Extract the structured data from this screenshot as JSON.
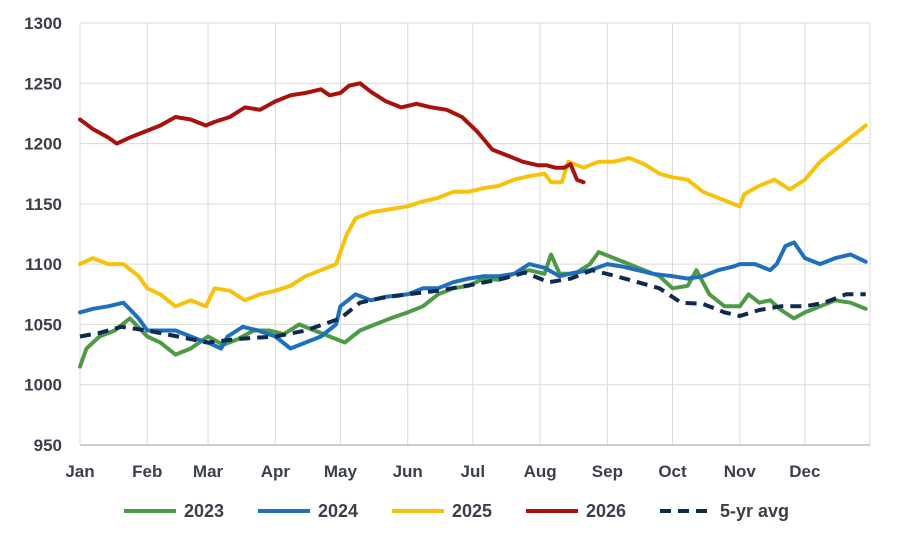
{
  "chart_data": {
    "type": "line",
    "title": "",
    "xlabel": "",
    "ylabel": "",
    "x_tick_labels": [
      "Jan",
      "Feb",
      "Mar",
      "Apr",
      "May",
      "Jun",
      "Jul",
      "Aug",
      "Sep",
      "Oct",
      "Nov",
      "Dec"
    ],
    "y_tick_labels": [
      "950",
      "1000",
      "1050",
      "1100",
      "1150",
      "1200",
      "1250",
      "1300"
    ],
    "ylim": [
      950,
      1300
    ],
    "grid": "vertical and horizontal",
    "legend_position": "bottom",
    "series": [
      {
        "name": "2023",
        "color": "#4f9a46",
        "dash": "solid",
        "points": [
          [
            "01-01",
            1015
          ],
          [
            "01-04",
            1030
          ],
          [
            "01-10",
            1040
          ],
          [
            "01-17",
            1045
          ],
          [
            "01-24",
            1055
          ],
          [
            "02-01",
            1040
          ],
          [
            "02-07",
            1035
          ],
          [
            "02-14",
            1025
          ],
          [
            "02-21",
            1030
          ],
          [
            "03-01",
            1040
          ],
          [
            "03-08",
            1033
          ],
          [
            "03-15",
            1038
          ],
          [
            "03-22",
            1045
          ],
          [
            "03-29",
            1045
          ],
          [
            "04-05",
            1042
          ],
          [
            "04-12",
            1050
          ],
          [
            "04-19",
            1045
          ],
          [
            "04-26",
            1040
          ],
          [
            "05-03",
            1035
          ],
          [
            "05-10",
            1045
          ],
          [
            "05-17",
            1050
          ],
          [
            "05-24",
            1055
          ],
          [
            "06-01",
            1060
          ],
          [
            "06-08",
            1065
          ],
          [
            "06-15",
            1075
          ],
          [
            "06-22",
            1080
          ],
          [
            "06-29",
            1082
          ],
          [
            "07-06",
            1088
          ],
          [
            "07-13",
            1087
          ],
          [
            "07-20",
            1092
          ],
          [
            "07-27",
            1095
          ],
          [
            "08-03",
            1092
          ],
          [
            "08-06",
            1108
          ],
          [
            "08-10",
            1092
          ],
          [
            "08-17",
            1092
          ],
          [
            "08-24",
            1100
          ],
          [
            "08-28",
            1110
          ],
          [
            "09-04",
            1105
          ],
          [
            "09-11",
            1100
          ],
          [
            "09-18",
            1095
          ],
          [
            "09-25",
            1090
          ],
          [
            "10-01",
            1080
          ],
          [
            "10-08",
            1082
          ],
          [
            "10-12",
            1095
          ],
          [
            "10-18",
            1075
          ],
          [
            "10-25",
            1065
          ],
          [
            "11-01",
            1065
          ],
          [
            "11-05",
            1075
          ],
          [
            "11-10",
            1068
          ],
          [
            "11-15",
            1070
          ],
          [
            "11-20",
            1062
          ],
          [
            "11-26",
            1055
          ],
          [
            "12-01",
            1060
          ],
          [
            "12-08",
            1065
          ],
          [
            "12-15",
            1070
          ],
          [
            "12-22",
            1068
          ],
          [
            "12-29",
            1063
          ]
        ]
      },
      {
        "name": "2024",
        "color": "#1f6fbf",
        "dash": "solid",
        "points": [
          [
            "01-01",
            1060
          ],
          [
            "01-07",
            1063
          ],
          [
            "01-14",
            1065
          ],
          [
            "01-21",
            1068
          ],
          [
            "01-28",
            1055
          ],
          [
            "02-01",
            1045
          ],
          [
            "02-07",
            1045
          ],
          [
            "02-14",
            1045
          ],
          [
            "02-21",
            1040
          ],
          [
            "02-28",
            1035
          ],
          [
            "03-01",
            1035
          ],
          [
            "03-07",
            1030
          ],
          [
            "03-10",
            1040
          ],
          [
            "03-17",
            1048
          ],
          [
            "03-24",
            1045
          ],
          [
            "04-01",
            1040
          ],
          [
            "04-08",
            1030
          ],
          [
            "04-15",
            1035
          ],
          [
            "04-22",
            1040
          ],
          [
            "04-29",
            1050
          ],
          [
            "05-01",
            1065
          ],
          [
            "05-08",
            1075
          ],
          [
            "05-15",
            1070
          ],
          [
            "05-22",
            1073
          ],
          [
            "06-01",
            1075
          ],
          [
            "06-08",
            1080
          ],
          [
            "06-15",
            1080
          ],
          [
            "06-22",
            1085
          ],
          [
            "06-29",
            1088
          ],
          [
            "07-06",
            1090
          ],
          [
            "07-13",
            1090
          ],
          [
            "07-20",
            1092
          ],
          [
            "07-27",
            1100
          ],
          [
            "08-03",
            1097
          ],
          [
            "08-10",
            1090
          ],
          [
            "08-17",
            1093
          ],
          [
            "08-24",
            1095
          ],
          [
            "09-01",
            1100
          ],
          [
            "09-08",
            1098
          ],
          [
            "09-15",
            1095
          ],
          [
            "09-22",
            1092
          ],
          [
            "10-01",
            1090
          ],
          [
            "10-08",
            1088
          ],
          [
            "10-15",
            1090
          ],
          [
            "10-22",
            1095
          ],
          [
            "10-29",
            1098
          ],
          [
            "11-01",
            1100
          ],
          [
            "11-08",
            1100
          ],
          [
            "11-15",
            1095
          ],
          [
            "11-18",
            1100
          ],
          [
            "11-22",
            1115
          ],
          [
            "11-26",
            1118
          ],
          [
            "12-01",
            1105
          ],
          [
            "12-08",
            1100
          ],
          [
            "12-15",
            1105
          ],
          [
            "12-22",
            1108
          ],
          [
            "12-29",
            1102
          ]
        ]
      },
      {
        "name": "2025",
        "color": "#f6c20c",
        "dash": "solid",
        "points": [
          [
            "01-01",
            1100
          ],
          [
            "01-07",
            1105
          ],
          [
            "01-14",
            1100
          ],
          [
            "01-21",
            1100
          ],
          [
            "01-28",
            1090
          ],
          [
            "02-01",
            1080
          ],
          [
            "02-07",
            1075
          ],
          [
            "02-14",
            1065
          ],
          [
            "02-21",
            1070
          ],
          [
            "02-28",
            1065
          ],
          [
            "03-04",
            1080
          ],
          [
            "03-11",
            1078
          ],
          [
            "03-18",
            1070
          ],
          [
            "03-25",
            1075
          ],
          [
            "04-01",
            1078
          ],
          [
            "04-08",
            1082
          ],
          [
            "04-15",
            1090
          ],
          [
            "04-22",
            1095
          ],
          [
            "04-29",
            1100
          ],
          [
            "05-01",
            1110
          ],
          [
            "05-04",
            1125
          ],
          [
            "05-08",
            1138
          ],
          [
            "05-15",
            1143
          ],
          [
            "05-22",
            1145
          ],
          [
            "06-01",
            1148
          ],
          [
            "06-08",
            1152
          ],
          [
            "06-15",
            1155
          ],
          [
            "06-22",
            1160
          ],
          [
            "06-29",
            1160
          ],
          [
            "07-06",
            1163
          ],
          [
            "07-13",
            1165
          ],
          [
            "07-20",
            1170
          ],
          [
            "07-27",
            1173
          ],
          [
            "08-03",
            1175
          ],
          [
            "08-06",
            1168
          ],
          [
            "08-11",
            1168
          ],
          [
            "08-14",
            1185
          ],
          [
            "08-21",
            1180
          ],
          [
            "08-28",
            1185
          ],
          [
            "09-04",
            1185
          ],
          [
            "09-11",
            1188
          ],
          [
            "09-18",
            1183
          ],
          [
            "09-25",
            1175
          ],
          [
            "10-01",
            1172
          ],
          [
            "10-08",
            1170
          ],
          [
            "10-15",
            1160
          ],
          [
            "10-22",
            1155
          ],
          [
            "10-29",
            1150
          ],
          [
            "11-01",
            1148
          ],
          [
            "11-03",
            1158
          ],
          [
            "11-10",
            1165
          ],
          [
            "11-17",
            1170
          ],
          [
            "11-24",
            1162
          ],
          [
            "12-01",
            1170
          ],
          [
            "12-08",
            1185
          ],
          [
            "12-15",
            1195
          ],
          [
            "12-22",
            1205
          ],
          [
            "12-29",
            1215
          ]
        ]
      },
      {
        "name": "2026",
        "color": "#a8120d",
        "dash": "solid",
        "points": [
          [
            "01-01",
            1220
          ],
          [
            "01-07",
            1212
          ],
          [
            "01-14",
            1205
          ],
          [
            "01-18",
            1200
          ],
          [
            "01-24",
            1205
          ],
          [
            "01-31",
            1210
          ],
          [
            "02-07",
            1215
          ],
          [
            "02-14",
            1222
          ],
          [
            "02-21",
            1220
          ],
          [
            "02-28",
            1215
          ],
          [
            "03-04",
            1218
          ],
          [
            "03-11",
            1222
          ],
          [
            "03-18",
            1230
          ],
          [
            "03-25",
            1228
          ],
          [
            "04-01",
            1235
          ],
          [
            "04-08",
            1240
          ],
          [
            "04-15",
            1242
          ],
          [
            "04-22",
            1245
          ],
          [
            "04-26",
            1240
          ],
          [
            "05-01",
            1242
          ],
          [
            "05-05",
            1248
          ],
          [
            "05-10",
            1250
          ],
          [
            "05-15",
            1243
          ],
          [
            "05-22",
            1235
          ],
          [
            "05-29",
            1230
          ],
          [
            "06-05",
            1233
          ],
          [
            "06-12",
            1230
          ],
          [
            "06-19",
            1228
          ],
          [
            "06-26",
            1222
          ],
          [
            "07-03",
            1210
          ],
          [
            "07-10",
            1195
          ],
          [
            "07-17",
            1190
          ],
          [
            "07-24",
            1185
          ],
          [
            "07-31",
            1182
          ],
          [
            "08-04",
            1182
          ],
          [
            "08-08",
            1180
          ],
          [
            "08-12",
            1180
          ],
          [
            "08-15",
            1183
          ],
          [
            "08-18",
            1170
          ],
          [
            "08-21",
            1168
          ]
        ]
      },
      {
        "name": "5-yr avg",
        "color": "#0e2a52",
        "dash": "dashed",
        "points": [
          [
            "01-01",
            1040
          ],
          [
            "01-10",
            1043
          ],
          [
            "01-20",
            1048
          ],
          [
            "02-01",
            1045
          ],
          [
            "02-15",
            1040
          ],
          [
            "03-01",
            1035
          ],
          [
            "03-15",
            1038
          ],
          [
            "04-01",
            1040
          ],
          [
            "04-15",
            1045
          ],
          [
            "05-01",
            1055
          ],
          [
            "05-10",
            1068
          ],
          [
            "05-20",
            1072
          ],
          [
            "06-01",
            1075
          ],
          [
            "06-15",
            1078
          ],
          [
            "07-01",
            1083
          ],
          [
            "07-15",
            1088
          ],
          [
            "07-25",
            1093
          ],
          [
            "08-05",
            1085
          ],
          [
            "08-15",
            1088
          ],
          [
            "08-25",
            1095
          ],
          [
            "09-05",
            1090
          ],
          [
            "09-15",
            1085
          ],
          [
            "09-25",
            1080
          ],
          [
            "10-05",
            1068
          ],
          [
            "10-15",
            1067
          ],
          [
            "10-25",
            1060
          ],
          [
            "11-01",
            1057
          ],
          [
            "11-10",
            1062
          ],
          [
            "11-20",
            1065
          ],
          [
            "12-01",
            1065
          ],
          [
            "12-10",
            1068
          ],
          [
            "12-20",
            1075
          ],
          [
            "12-29",
            1075
          ]
        ]
      }
    ]
  }
}
